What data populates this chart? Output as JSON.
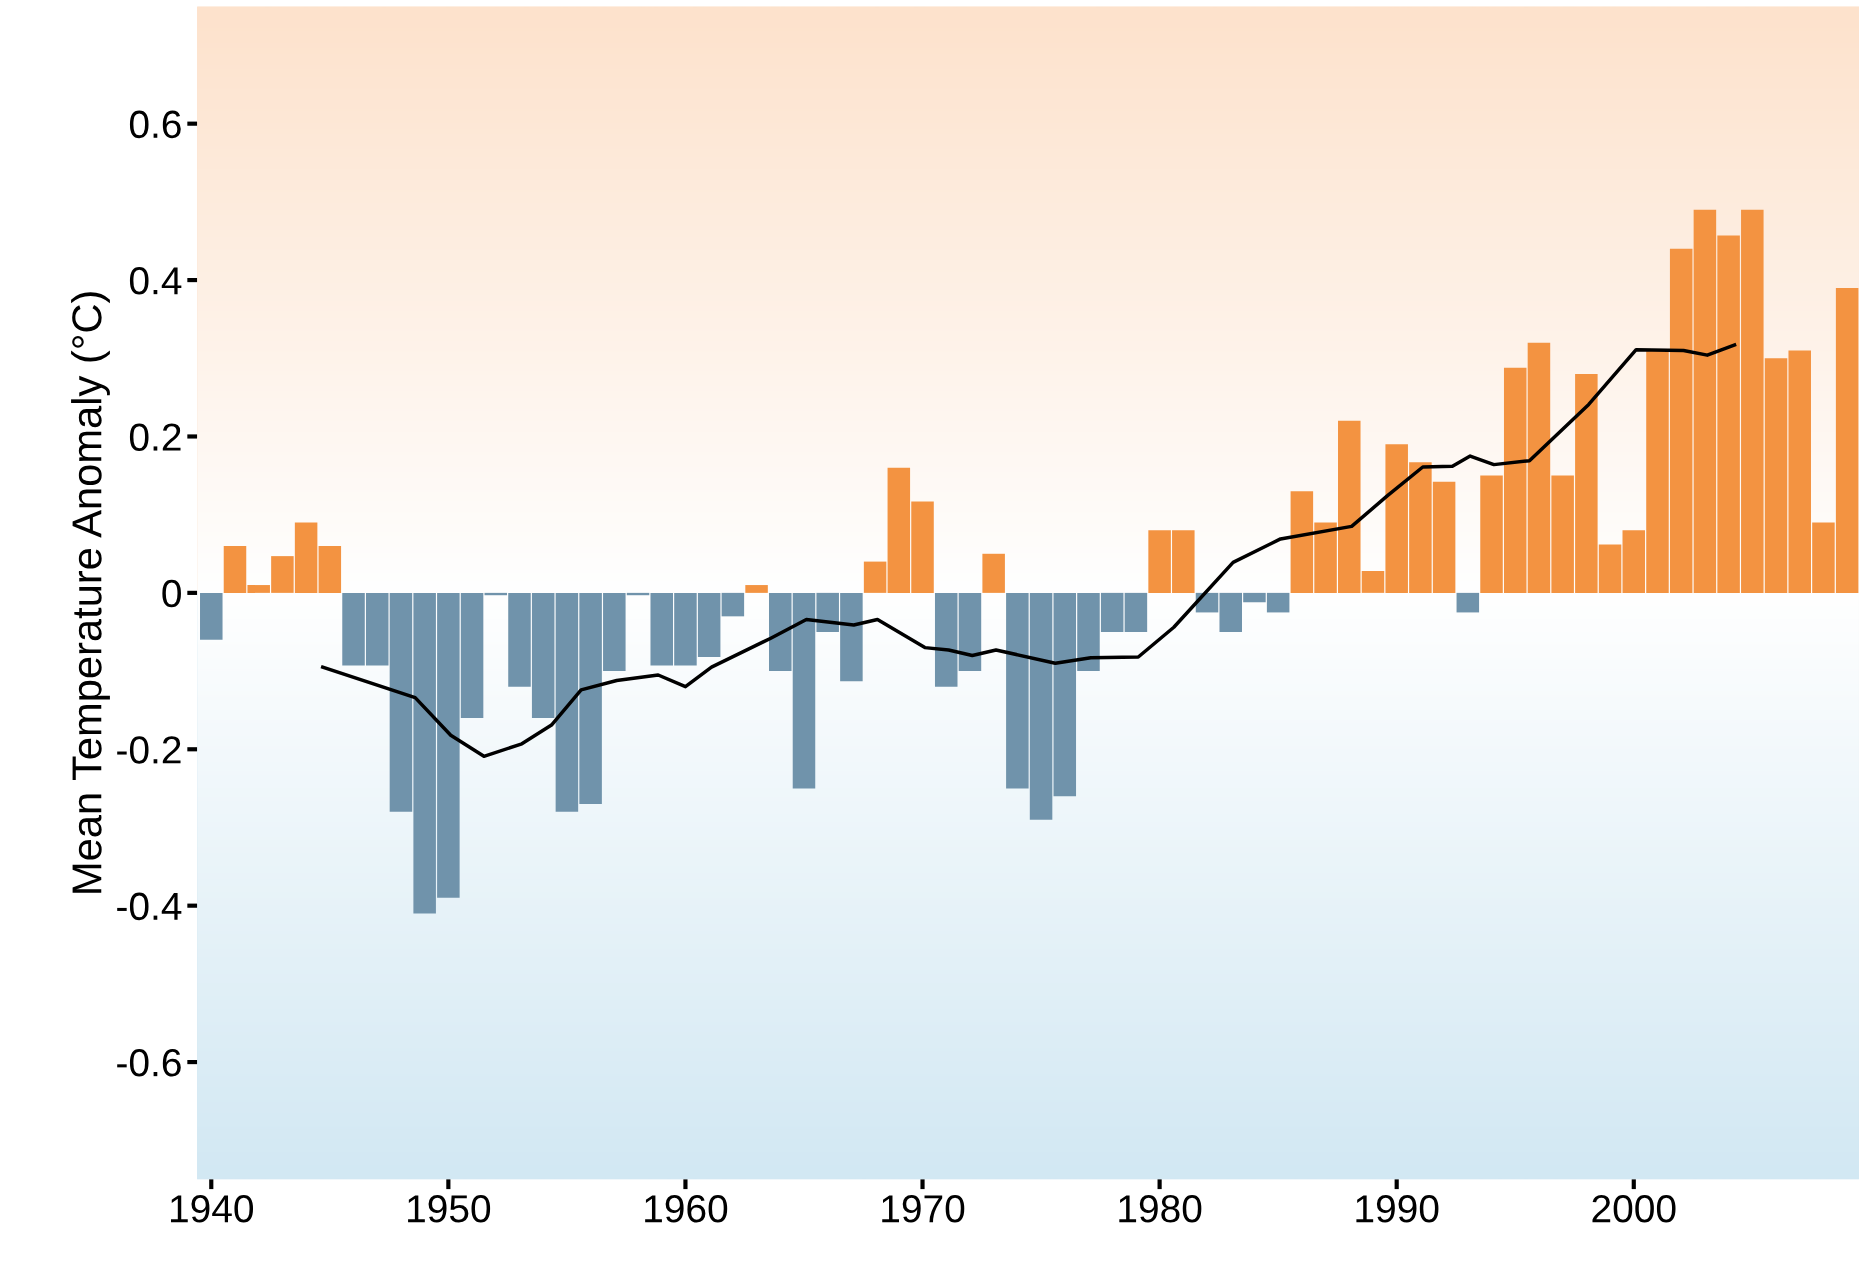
{
  "chart_data": {
    "type": "bar",
    "ylabel": "Mean Temperature Anomaly (°C)",
    "x": [
      1940,
      1941,
      1942,
      1943,
      1944,
      1945,
      1946,
      1947,
      1948,
      1949,
      1950,
      1951,
      1952,
      1953,
      1954,
      1955,
      1956,
      1957,
      1958,
      1959,
      1960,
      1961,
      1962,
      1963,
      1964,
      1965,
      1966,
      1967,
      1968,
      1969,
      1970,
      1971,
      1972,
      1973,
      1974,
      1975,
      1976,
      1977,
      1978,
      1979,
      1980,
      1981,
      1982,
      1983,
      1984,
      1985,
      1986,
      1987,
      1988,
      1989,
      1990,
      1991,
      1992,
      1993,
      1994,
      1995,
      1996,
      1997,
      1998,
      1999,
      2000,
      2001,
      2002,
      2003,
      2004,
      2005,
      2006,
      2007,
      2008,
      2009
    ],
    "series": [
      {
        "values": [
          -0.06,
          0.06,
          0.01,
          0.047,
          0.09,
          0.06,
          -0.093,
          -0.093,
          -0.28,
          -0.41,
          -0.39,
          -0.16,
          -0.003,
          -0.12,
          -0.16,
          -0.28,
          -0.27,
          -0.1,
          -0.003,
          -0.093,
          -0.093,
          -0.082,
          -0.03,
          0.01,
          -0.1,
          -0.25,
          -0.05,
          -0.113,
          0.04,
          0.16,
          0.117,
          -0.12,
          -0.1,
          0.05,
          -0.25,
          -0.29,
          -0.26,
          -0.1,
          -0.05,
          -0.05,
          0.08,
          0.08,
          -0.025,
          -0.05,
          -0.012,
          -0.025,
          0.13,
          0.09,
          0.22,
          0.028,
          0.19,
          0.167,
          0.142,
          -0.025,
          0.15,
          0.288,
          0.32,
          0.15,
          0.28,
          0.062,
          0.08,
          0.31,
          0.44,
          0.49,
          0.457,
          0.49,
          0.3,
          0.31,
          0.09,
          0.39
        ],
        "colors": [
          "#7093ab",
          "#f39341",
          "#f39341",
          "#f39341",
          "#f39341",
          "#f39341",
          "#7093ab",
          "#7093ab",
          "#7093ab",
          "#7093ab",
          "#7093ab",
          "#7093ab",
          "#7093ab",
          "#7093ab",
          "#7093ab",
          "#7093ab",
          "#7093ab",
          "#7093ab",
          "#7093ab",
          "#7093ab",
          "#7093ab",
          "#7093ab",
          "#7093ab",
          "#f39341",
          "#7093ab",
          "#7093ab",
          "#7093ab",
          "#7093ab",
          "#f39341",
          "#f39341",
          "#f39341",
          "#7093ab",
          "#7093ab",
          "#f39341",
          "#7093ab",
          "#7093ab",
          "#7093ab",
          "#7093ab",
          "#7093ab",
          "#7093ab",
          "#f39341",
          "#f39341",
          "#7093ab",
          "#7093ab",
          "#7093ab",
          "#7093ab",
          "#f39341",
          "#f39341",
          "#f39341",
          "#f39341",
          "#f39341",
          "#f39341",
          "#f39341",
          "#7093ab",
          "#f39341",
          "#f39341",
          "#f39341",
          "#f39341",
          "#f39341",
          "#f39341",
          "#f39341",
          "#f39341",
          "#f39341",
          "#f39341",
          "#f39341",
          "#f39341",
          "#f39341",
          "#f39341",
          "#f39341",
          "#f39341"
        ]
      },
      {
        "type": "line",
        "color": "#000000",
        "x": [
          1944.7,
          1948.6,
          1950.1,
          1951.5,
          1953.1,
          1954.35,
          1955.6,
          1957.1,
          1958.85,
          1960,
          1961.1,
          1963.6,
          1965.1,
          1967.1,
          1968.1,
          1970.1,
          1971.1,
          1972.1,
          1973.1,
          1975.6,
          1977.1,
          1979.1,
          1980.6,
          1983.1,
          1985.1,
          1988.1,
          1989.6,
          1991.1,
          1992.35,
          1993.1,
          1994.1,
          1995.6,
          1998.1,
          2000.1,
          2002.1,
          2003.1,
          2004.25
        ],
        "values": [
          -0.095,
          -0.134,
          -0.182,
          -0.209,
          -0.193,
          -0.169,
          -0.124,
          -0.112,
          -0.105,
          -0.12,
          -0.095,
          -0.058,
          -0.034,
          -0.041,
          -0.034,
          -0.07,
          -0.073,
          -0.08,
          -0.073,
          -0.09,
          -0.083,
          -0.082,
          -0.044,
          0.039,
          0.069,
          0.085,
          0.124,
          0.161,
          0.162,
          0.175,
          0.164,
          0.169,
          0.241,
          0.311,
          0.31,
          0.304,
          0.317
        ]
      }
    ],
    "bands": [
      {
        "axis": "y",
        "from": 0,
        "to": 0.75,
        "label": null,
        "color": "#fde2cc"
      },
      {
        "axis": "y",
        "from": 0,
        "to": -0.75,
        "label": null,
        "color": "#d2e8f3"
      }
    ],
    "xlim": [
      1939.4,
      2009.5
    ],
    "xticks": [
      1940,
      1950,
      1960,
      1970,
      1980,
      1990,
      2000
    ],
    "ylim": [
      -0.75,
      0.75
    ],
    "yticks": [
      -0.6,
      -0.4,
      -0.2,
      0,
      0.2,
      0.4,
      0.6
    ],
    "grid": false,
    "legend": false
  }
}
